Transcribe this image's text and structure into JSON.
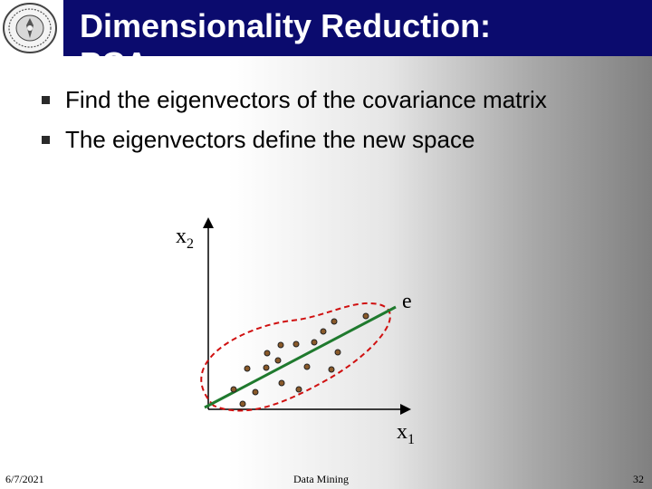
{
  "slide": {
    "title": "Dimensionality Reduction:",
    "title_overflow": "PCA",
    "bullets": [
      "Find the eigenvectors of the covariance matrix",
      "The eigenvectors define the new space"
    ]
  },
  "diagram": {
    "x_axis_label": "x",
    "x_axis_subscript": "1",
    "y_axis_label": "x",
    "y_axis_subscript": "2",
    "vector_label": "e"
  },
  "footer": {
    "date": "6/7/2021",
    "center": "Data Mining",
    "page": "32"
  },
  "colors": {
    "title_bar": "#0b0b6e",
    "vector_line": "#1f7a2e",
    "ellipse": "#d01010",
    "point_fill": "#8a5a2a"
  }
}
